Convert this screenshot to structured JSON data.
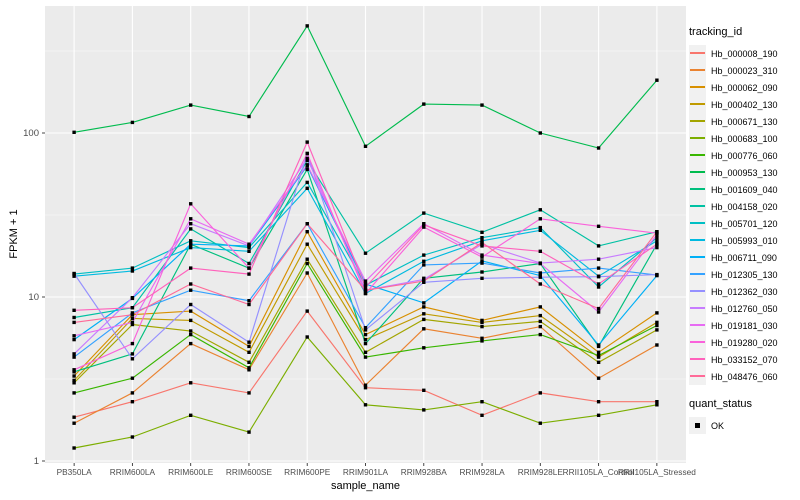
{
  "chart_data": {
    "type": "line",
    "title": "",
    "xlabel": "sample_name",
    "ylabel": "FPKM + 1",
    "yscale": "log10",
    "ylim": [
      1,
      560
    ],
    "yticks": [
      1,
      10,
      100
    ],
    "ytick_labels": [
      "1",
      "10",
      "100"
    ],
    "yminor": [
      3.162,
      31.62,
      316.2
    ],
    "grid": "on",
    "panel_bg": "#EBEBEB",
    "grid_color": "#FFFFFF",
    "axis_text_color": "#4D4D4D",
    "point_marker": "black-square",
    "legend_position": "right",
    "legend_title": "tracking_id",
    "categories": [
      "PB350LA",
      "RRIM600LA",
      "RRIM600LE",
      "RRIM600SE",
      "RRIM600PE",
      "RRIM901LA",
      "RRIM928BA",
      "RRIM928LA",
      "RRIM928LE",
      "RRII105LA_Control",
      "RRII105LA_Stressed"
    ],
    "series": [
      {
        "name": "Hb_000008_190",
        "color": "#F8766D",
        "values": [
          1.85,
          2.3,
          3.0,
          2.6,
          8.2,
          2.8,
          2.7,
          1.9,
          2.6,
          2.3,
          2.3
        ]
      },
      {
        "name": "Hb_000023_310",
        "color": "#EA8331",
        "values": [
          1.7,
          2.6,
          5.2,
          3.6,
          14,
          2.9,
          6.4,
          5.6,
          6.6,
          3.2,
          5.1
        ]
      },
      {
        "name": "Hb_000062_090",
        "color": "#D89000",
        "values": [
          3.3,
          7.8,
          8.2,
          5.0,
          25,
          5.9,
          8.7,
          7.2,
          8.7,
          4.6,
          8.0
        ]
      },
      {
        "name": "Hb_000402_130",
        "color": "#C09B00",
        "values": [
          3.1,
          7.4,
          7.2,
          4.6,
          21,
          5.5,
          7.9,
          7.0,
          7.7,
          4.3,
          7.0
        ]
      },
      {
        "name": "Hb_000671_130",
        "color": "#A3A500",
        "values": [
          3.0,
          6.8,
          6.2,
          4.0,
          17,
          4.6,
          7.3,
          6.6,
          7.1,
          4.0,
          6.3
        ]
      },
      {
        "name": "Hb_000683_100",
        "color": "#7CAE00",
        "values": [
          1.2,
          1.4,
          1.9,
          1.5,
          5.7,
          2.2,
          2.05,
          2.3,
          1.7,
          1.9,
          2.2
        ]
      },
      {
        "name": "Hb_000776_060",
        "color": "#39B600",
        "values": [
          2.6,
          3.2,
          5.9,
          3.7,
          16,
          4.3,
          4.9,
          5.4,
          5.9,
          4.4,
          6.7
        ]
      },
      {
        "name": "Hb_000953_130",
        "color": "#00BB4E",
        "values": [
          101,
          116,
          148,
          126,
          450,
          83,
          150,
          148,
          100,
          81,
          210
        ]
      },
      {
        "name": "Hb_001609_040",
        "color": "#00BF7D",
        "values": [
          3.5,
          4.5,
          21,
          15,
          60,
          5.2,
          13,
          14.2,
          16,
          5.0,
          21
        ]
      },
      {
        "name": "Hb_004158_020",
        "color": "#00C1A3",
        "values": [
          7.5,
          8.6,
          26,
          16,
          68,
          18.5,
          32.5,
          24.8,
          34,
          20.5,
          25
        ]
      },
      {
        "name": "Hb_005701_120",
        "color": "#00BFC4",
        "values": [
          13.8,
          15.0,
          22,
          20,
          50,
          11.8,
          18,
          23,
          26.5,
          11.5,
          23
        ]
      },
      {
        "name": "Hb_005993_010",
        "color": "#00BAE0",
        "values": [
          13.4,
          14.4,
          20,
          19,
          46,
          10.5,
          16.5,
          22,
          25.5,
          13.4,
          22
        ]
      },
      {
        "name": "Hb_006711_090",
        "color": "#00B0F6",
        "values": [
          5.5,
          9.8,
          21,
          20.5,
          63,
          12,
          9.2,
          16.6,
          13.5,
          5.1,
          13.5
        ]
      },
      {
        "name": "Hb_012305_130",
        "color": "#35A2FF",
        "values": [
          4.3,
          8.0,
          11,
          9.5,
          28,
          6.5,
          15.7,
          16.1,
          14,
          15,
          13.6
        ]
      },
      {
        "name": "Hb_012362_030",
        "color": "#9590FF",
        "values": [
          13.9,
          4.2,
          9.0,
          5.3,
          75,
          6.3,
          12.3,
          13,
          13.2,
          13.3,
          13.7
        ]
      },
      {
        "name": "Hb_012760_050",
        "color": "#C77CFF",
        "values": [
          4.5,
          9.9,
          28,
          20.5,
          70,
          11,
          12.8,
          21,
          16.1,
          17,
          20
        ]
      },
      {
        "name": "Hb_019181_030",
        "color": "#E76BF3",
        "values": [
          5.8,
          7.0,
          30,
          21,
          64,
          12.5,
          28,
          18,
          16,
          8.1,
          24
        ]
      },
      {
        "name": "Hb_019280_020",
        "color": "#FA62DB",
        "values": [
          3.6,
          5.2,
          37,
          15,
          75,
          10.5,
          26.7,
          17.5,
          30,
          27,
          24.5
        ]
      },
      {
        "name": "Hb_033152_070",
        "color": "#FF62BC",
        "values": [
          8.3,
          8.6,
          15,
          13.8,
          88,
          11.5,
          27.5,
          20.5,
          19,
          12,
          21
        ]
      },
      {
        "name": "Hb_048476_060",
        "color": "#FF6A98",
        "values": [
          7.0,
          7.8,
          12,
          9.0,
          28,
          11,
          12.5,
          21.5,
          12,
          8.5,
          25
        ]
      }
    ],
    "quant_legend": {
      "title": "quant_status",
      "entries": [
        {
          "label": "OK",
          "marker": "black-square"
        }
      ]
    }
  }
}
